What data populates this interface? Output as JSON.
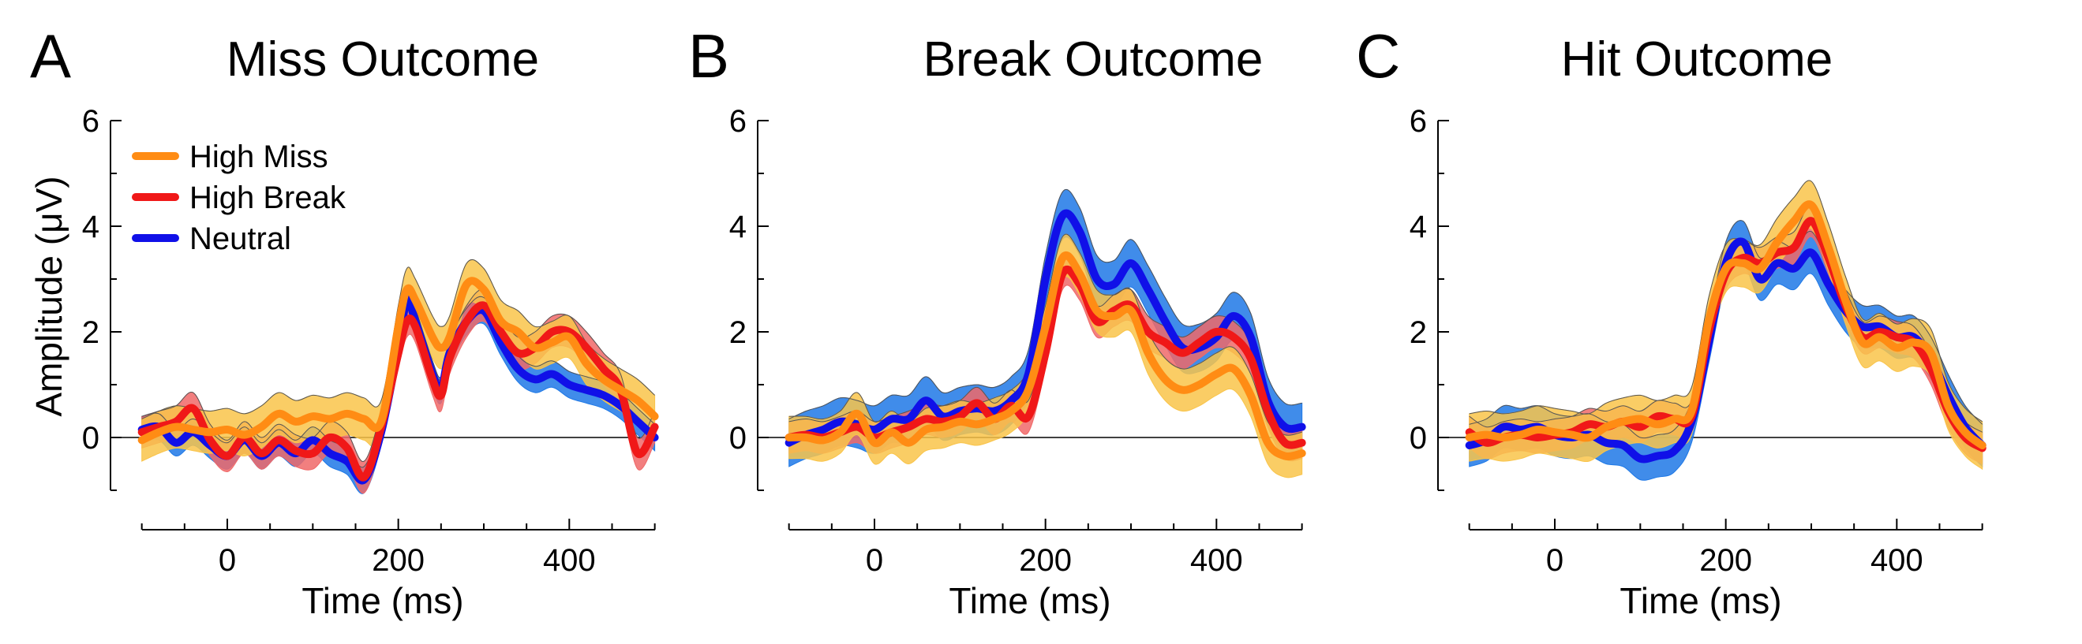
{
  "figure": {
    "colors": {
      "high_miss": "#ff8c14",
      "high_miss_band": "#f9c44a",
      "high_break": "#f01818",
      "high_break_band": "#f06868",
      "neutral": "#1010e8",
      "neutral_band": "#1e78e6"
    },
    "legend": {
      "items": [
        {
          "label": "High Miss",
          "color": "#ff8c14"
        },
        {
          "label": "High Break",
          "color": "#f01818"
        },
        {
          "label": "Neutral",
          "color": "#1010e8"
        }
      ]
    }
  },
  "chart_data": [
    {
      "type": "line",
      "panel_letter": "A",
      "title": "Miss Outcome",
      "xlabel": "Time (ms)",
      "ylabel": "Amplitude (μV)",
      "xlim": [
        -100,
        500
      ],
      "ylim": [
        -1,
        6
      ],
      "x_ticks": [
        0,
        200,
        400
      ],
      "y_ticks": [
        0,
        2,
        4,
        6
      ],
      "legend_position": "top-left",
      "x": [
        -100,
        -80,
        -60,
        -40,
        -20,
        0,
        20,
        40,
        60,
        80,
        100,
        120,
        140,
        160,
        180,
        200,
        210,
        220,
        240,
        250,
        260,
        280,
        300,
        320,
        340,
        360,
        380,
        400,
        420,
        440,
        460,
        480,
        500
      ],
      "series": [
        {
          "name": "Neutral",
          "band": 0.25,
          "values": [
            0.15,
            0.2,
            -0.1,
            0.1,
            -0.15,
            -0.35,
            -0.05,
            -0.35,
            -0.1,
            -0.3,
            -0.05,
            -0.3,
            -0.45,
            -0.8,
            0.1,
            1.7,
            2.6,
            2.2,
            1.2,
            0.9,
            1.6,
            2.2,
            2.4,
            1.8,
            1.3,
            1.1,
            1.2,
            1.0,
            0.9,
            0.8,
            0.6,
            0.3,
            0.0
          ]
        },
        {
          "name": "High Break",
          "band": 0.3,
          "values": [
            0.1,
            0.2,
            0.3,
            0.55,
            -0.05,
            -0.35,
            0.0,
            -0.3,
            -0.05,
            -0.25,
            -0.3,
            0.0,
            -0.2,
            -0.75,
            0.2,
            1.6,
            2.2,
            2.1,
            1.1,
            0.8,
            1.5,
            2.2,
            2.5,
            2.0,
            1.6,
            1.7,
            2.0,
            2.0,
            1.7,
            1.3,
            0.9,
            -0.3,
            0.2
          ]
        },
        {
          "name": "High Miss",
          "band": 0.4,
          "values": [
            -0.05,
            0.1,
            0.2,
            0.15,
            0.1,
            0.15,
            0.05,
            0.2,
            0.45,
            0.3,
            0.4,
            0.35,
            0.45,
            0.35,
            0.3,
            2.1,
            2.8,
            2.6,
            1.9,
            1.7,
            1.9,
            2.9,
            2.8,
            2.2,
            2.0,
            1.7,
            1.8,
            1.9,
            1.4,
            1.1,
            0.9,
            0.7,
            0.4
          ]
        }
      ]
    },
    {
      "type": "line",
      "panel_letter": "B",
      "title": "Break Outcome",
      "xlabel": "Time (ms)",
      "ylabel": "",
      "xlim": [
        -100,
        500
      ],
      "ylim": [
        -1,
        6
      ],
      "x_ticks": [
        0,
        200,
        400
      ],
      "y_ticks": [
        0,
        2,
        4,
        6
      ],
      "x": [
        -100,
        -80,
        -60,
        -40,
        -20,
        0,
        20,
        40,
        60,
        80,
        100,
        120,
        140,
        160,
        180,
        200,
        220,
        240,
        260,
        280,
        300,
        320,
        340,
        360,
        380,
        400,
        420,
        440,
        460,
        480,
        500
      ],
      "series": [
        {
          "name": "Neutral",
          "band": 0.45,
          "values": [
            -0.1,
            0.05,
            0.15,
            0.3,
            0.25,
            0.15,
            0.35,
            0.35,
            0.7,
            0.4,
            0.5,
            0.55,
            0.5,
            0.7,
            1.2,
            3.0,
            4.2,
            3.9,
            3.0,
            2.9,
            3.3,
            2.8,
            2.2,
            1.7,
            1.7,
            1.9,
            2.3,
            1.9,
            0.7,
            0.2,
            0.2
          ]
        },
        {
          "name": "High Break",
          "band": 0.3,
          "values": [
            0.0,
            0.05,
            0.0,
            0.1,
            0.2,
            0.0,
            0.1,
            0.2,
            0.35,
            0.3,
            0.4,
            0.65,
            0.35,
            0.6,
            0.4,
            1.6,
            3.1,
            2.9,
            2.2,
            2.4,
            2.5,
            2.0,
            1.8,
            1.6,
            1.8,
            2.0,
            1.9,
            1.5,
            0.5,
            -0.1,
            -0.1
          ]
        },
        {
          "name": "High Miss",
          "band": 0.4,
          "values": [
            0.0,
            0.0,
            -0.05,
            0.1,
            0.45,
            -0.1,
            0.1,
            -0.1,
            0.15,
            0.2,
            0.3,
            0.25,
            0.35,
            0.5,
            0.9,
            2.1,
            3.4,
            3.1,
            2.4,
            2.3,
            2.4,
            1.6,
            1.1,
            0.9,
            1.0,
            1.2,
            1.3,
            0.8,
            -0.1,
            -0.35,
            -0.3
          ]
        }
      ]
    },
    {
      "type": "line",
      "panel_letter": "C",
      "title": "Hit Outcome",
      "xlabel": "Time (ms)",
      "ylabel": "",
      "xlim": [
        -100,
        500
      ],
      "ylim": [
        -1,
        6
      ],
      "x_ticks": [
        0,
        200,
        400
      ],
      "y_ticks": [
        0,
        2,
        4,
        6
      ],
      "x": [
        -100,
        -80,
        -60,
        -40,
        -20,
        0,
        20,
        40,
        60,
        80,
        100,
        120,
        140,
        160,
        180,
        200,
        220,
        240,
        260,
        280,
        300,
        320,
        340,
        360,
        380,
        400,
        420,
        440,
        460,
        480,
        500
      ],
      "series": [
        {
          "name": "Neutral",
          "band": 0.4,
          "values": [
            -0.15,
            -0.05,
            0.2,
            0.15,
            0.2,
            0.05,
            0.0,
            0.05,
            -0.1,
            -0.15,
            -0.4,
            -0.35,
            -0.25,
            0.3,
            1.8,
            3.3,
            3.7,
            3.0,
            3.3,
            3.2,
            3.5,
            2.9,
            2.4,
            2.1,
            2.1,
            1.9,
            1.9,
            1.5,
            0.8,
            0.2,
            -0.15
          ]
        },
        {
          "name": "High Break",
          "band": 0.3,
          "values": [
            0.1,
            -0.1,
            0.0,
            0.05,
            0.0,
            0.05,
            0.1,
            0.25,
            0.2,
            0.3,
            0.2,
            0.4,
            0.35,
            0.4,
            2.0,
            3.1,
            3.4,
            3.3,
            3.5,
            3.6,
            4.1,
            3.4,
            2.5,
            1.9,
            2.0,
            1.9,
            1.8,
            1.3,
            0.5,
            0.0,
            -0.2
          ]
        },
        {
          "name": "High Miss",
          "band": 0.45,
          "values": [
            0.0,
            0.05,
            0.0,
            0.05,
            0.15,
            0.1,
            0.05,
            0.0,
            0.2,
            0.3,
            0.35,
            0.25,
            0.35,
            0.5,
            2.2,
            3.2,
            3.3,
            3.2,
            3.7,
            4.1,
            4.4,
            3.6,
            2.6,
            1.8,
            1.9,
            1.7,
            1.8,
            1.6,
            0.6,
            0.1,
            -0.15
          ]
        }
      ]
    }
  ]
}
